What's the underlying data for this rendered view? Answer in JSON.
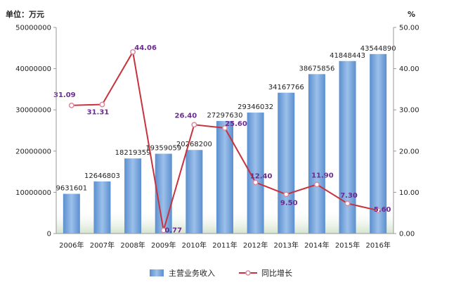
{
  "chart_data": {
    "type": "bar+line",
    "unit_left": "单位：万元",
    "unit_right": "%",
    "categories": [
      "2006年",
      "2007年",
      "2008年",
      "2009年",
      "2010年",
      "2011年",
      "2012年",
      "2013年",
      "2014年",
      "2015年",
      "2016年"
    ],
    "series": [
      {
        "name": "主营业务收入",
        "type": "bar",
        "axis": "left",
        "values": [
          9631601,
          12646803,
          18219359,
          19359059,
          20268200,
          27297630,
          29346032,
          34167766,
          38675856,
          41848443,
          43544890
        ],
        "labels": [
          "9631601",
          "12646803",
          "18219359",
          "19359059",
          "20268200",
          "27297630",
          "29346032",
          "34167766",
          "38675856",
          "41848443",
          "43544890"
        ]
      },
      {
        "name": "同比增长",
        "type": "line",
        "axis": "right",
        "values": [
          31.09,
          31.31,
          44.06,
          0.77,
          26.4,
          25.6,
          12.4,
          9.5,
          11.9,
          7.3,
          5.6
        ],
        "labels": [
          "31.09",
          "31.31",
          "44.06",
          "0.77",
          "26.40",
          "25.60",
          "12.40",
          "9.50",
          "11.90",
          "7.30",
          "5.60"
        ]
      }
    ],
    "y_left": {
      "min": 0,
      "max": 50000000,
      "ticks": [
        "0",
        "10000000",
        "20000000",
        "30000000",
        "40000000",
        "50000000"
      ]
    },
    "y_right": {
      "min": 0,
      "max": 50,
      "ticks": [
        "0.00",
        "10.00",
        "20.00",
        "30.00",
        "40.00",
        "50.00"
      ]
    },
    "grid": false,
    "legend": "bottom",
    "colors": {
      "bar": "#7aa6d8",
      "line": "#c8323c",
      "marker": "#d98aa0",
      "pct_label": "#6a2c91"
    }
  }
}
